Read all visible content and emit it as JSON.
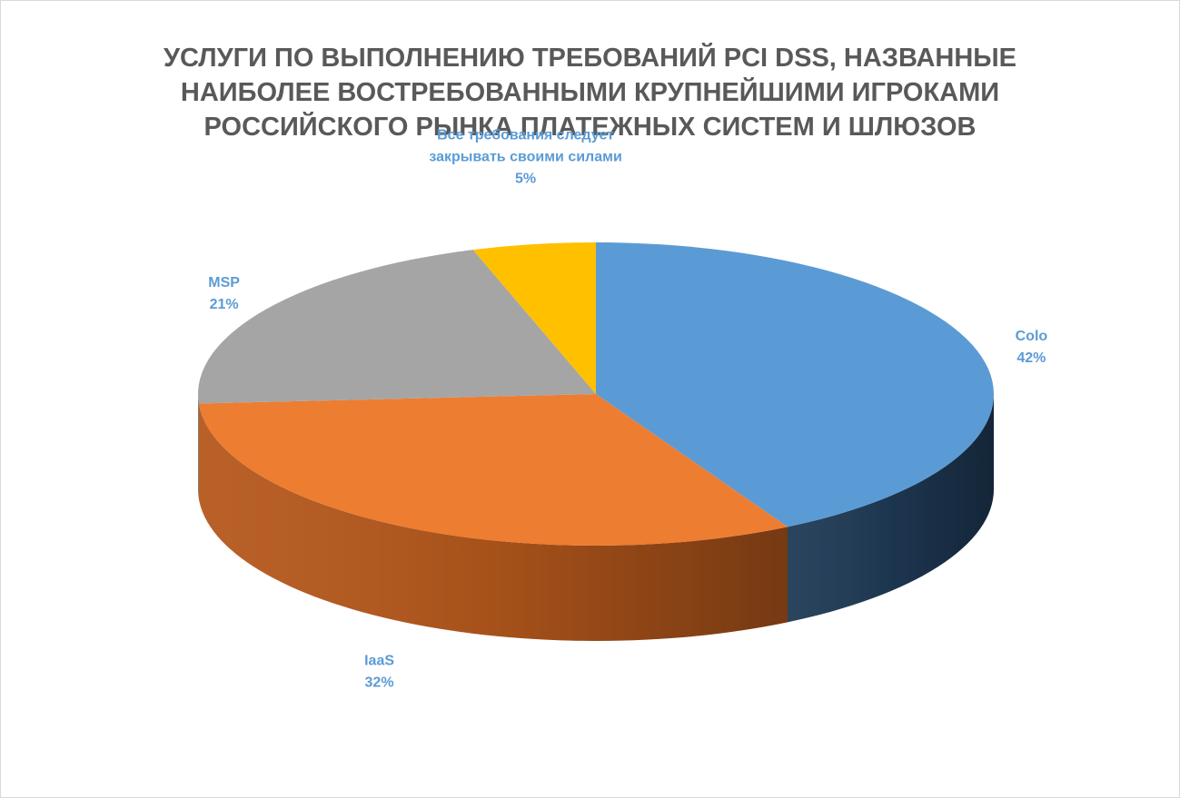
{
  "chart_data": {
    "type": "pie",
    "title": "УСЛУГИ ПО ВЫПОЛНЕНИЮ ТРЕБОВАНИЙ PCI DSS, НАЗВАННЫЕ\nНАИБОЛЕЕ ВОСТРЕБОВАННЫМИ КРУПНЕЙШИМИ ИГРОКАМИ\nРОССИЙСКОГО РЫНКА ПЛАТЕЖНЫХ СИСТЕМ И ШЛЮЗОВ",
    "three_d": true,
    "slices": [
      {
        "label": "Colo",
        "value": 42,
        "percent_label": "42%",
        "color": "#5B9BD5",
        "side_color": "#1F3A56",
        "label_color": "#5B9BD5"
      },
      {
        "label": "IaaS",
        "value": 32,
        "percent_label": "32%",
        "color": "#ED7D31",
        "side_color": "#B5581C",
        "label_color": "#5B9BD5"
      },
      {
        "label": "MSP",
        "value": 21,
        "percent_label": "21%",
        "color": "#A5A5A5",
        "side_color": "#7F7F7F",
        "label_color": "#5B9BD5"
      },
      {
        "label": "Все требования следует\nзакрывать своими силами",
        "value": 5,
        "percent_label": "5%",
        "color": "#FFC000",
        "side_color": "#C79600",
        "label_color": "#5B9BD5"
      }
    ]
  }
}
